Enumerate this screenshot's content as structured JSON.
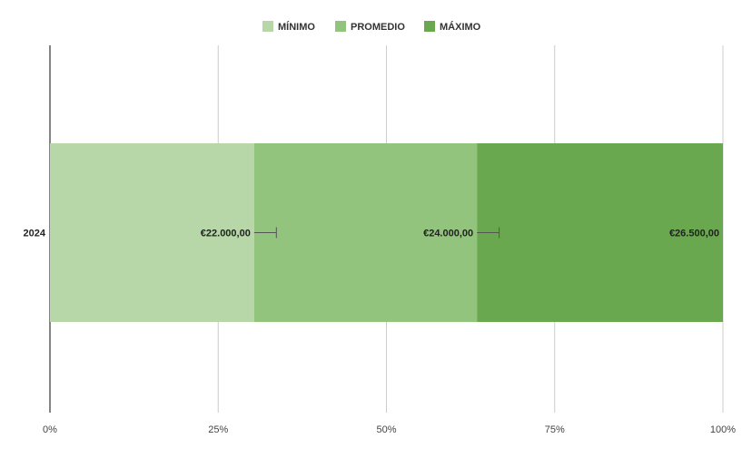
{
  "chart_data": {
    "type": "bar",
    "orientation": "horizontal",
    "stacked": true,
    "stack_mode": "percent",
    "categories": [
      "2024"
    ],
    "series": [
      {
        "name": "MÍNIMO",
        "values": [
          22000
        ],
        "label": "€22.000,00",
        "color": "#b7d7a8"
      },
      {
        "name": "PROMEDIO",
        "values": [
          24000
        ],
        "label": "€24.000,00",
        "color": "#93c47d"
      },
      {
        "name": "MÁXIMO",
        "values": [
          26500
        ],
        "label": "€26.500,00",
        "color": "#6aa84f"
      }
    ],
    "error_bars": [
      {
        "series": "MÍNIMO",
        "upper_percent": 3.3
      },
      {
        "series": "PROMEDIO",
        "upper_percent": 3.3
      }
    ],
    "xlim": [
      0,
      100
    ],
    "x_ticks": [
      0,
      25,
      50,
      75,
      100
    ],
    "x_tick_labels": [
      "0%",
      "25%",
      "50%",
      "75%",
      "100%"
    ],
    "grid": true,
    "legend": "top-center",
    "title": "",
    "xlabel": "",
    "ylabel": ""
  }
}
